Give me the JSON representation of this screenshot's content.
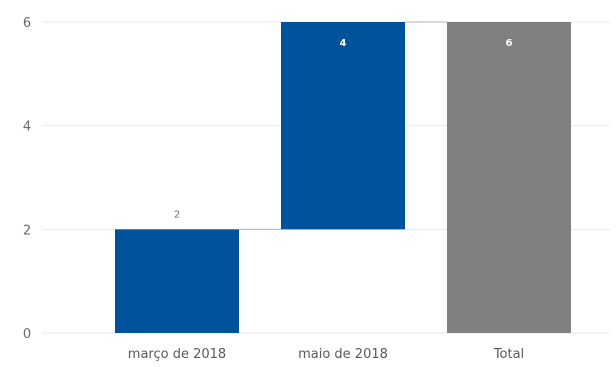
{
  "chart_data": {
    "type": "bar",
    "subtype": "waterfall",
    "categories": [
      "março de 2018",
      "maio de 2018",
      "Total"
    ],
    "increments": [
      2,
      4
    ],
    "total": 6,
    "data_labels": [
      "2",
      "4",
      "6"
    ],
    "ylim": [
      0,
      6
    ],
    "yticks": [
      "0",
      "2",
      "4",
      "6"
    ],
    "grid": true,
    "colors": {
      "increase": "#00529b",
      "total": "#808080",
      "connector": "#b3b3b3",
      "gridline": "#e9e9e9"
    }
  }
}
